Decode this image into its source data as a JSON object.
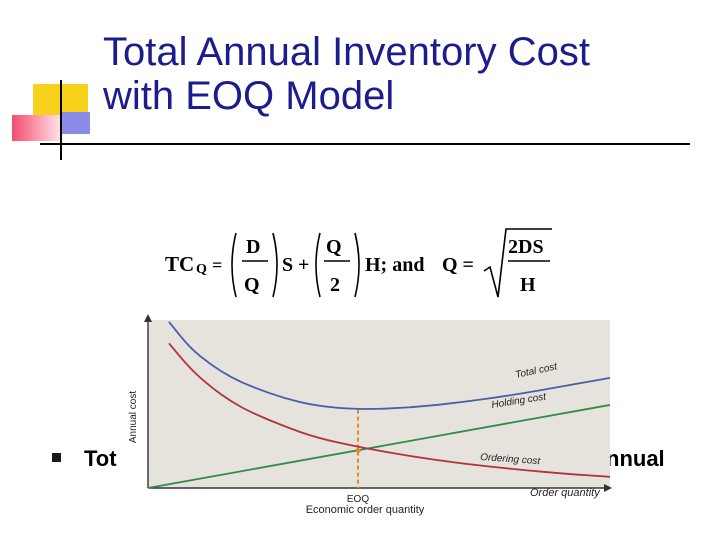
{
  "slide": {
    "title_line1": "Total Annual Inventory Cost",
    "title_line2": "with EOQ Model",
    "bullet_left": "Tot",
    "bullet_right": "nnual"
  },
  "formula": {
    "tcq": "TC",
    "q_sub": "Q",
    "D": "D",
    "Q": "Q",
    "S": "S",
    "plus": "+",
    "two": "2",
    "H": "H",
    "semi_and": "H;   and",
    "q_eq": "Q =",
    "eq": "=",
    "two_ds": "2DS"
  },
  "colors": {
    "title": "#1c1c8c",
    "total_cost": "#4a5eaa",
    "holding_cost": "#2e8b4a",
    "ordering_cost": "#b0343c",
    "eoq_marker": "#e08a2a",
    "plot_bg": "#e6e2dc"
  },
  "chart_data": {
    "type": "line",
    "xlabel": "Order quantity",
    "ylabel": "Annual cost",
    "x_caption": "Economic order quantity",
    "eoq_label": "EOQ",
    "eoq_x": 200,
    "xlim": [
      0,
      440
    ],
    "ylim": [
      0,
      180
    ],
    "series": [
      {
        "name": "Total cost",
        "x": [
          20,
          40,
          60,
          80,
          100,
          130,
          160,
          200,
          250,
          300,
          350,
          400,
          440
        ],
        "values": [
          178,
          150,
          132,
          118,
          108,
          96,
          88,
          84,
          86,
          92,
          100,
          110,
          118
        ]
      },
      {
        "name": "Holding cost",
        "x": [
          0,
          440
        ],
        "values": [
          0,
          89
        ]
      },
      {
        "name": "Ordering cost",
        "x": [
          20,
          40,
          60,
          80,
          100,
          130,
          160,
          200,
          250,
          300,
          350,
          400,
          440
        ],
        "values": [
          155,
          128,
          108,
          92,
          80,
          66,
          54,
          44,
          34,
          26,
          20,
          15,
          12
        ]
      }
    ]
  }
}
